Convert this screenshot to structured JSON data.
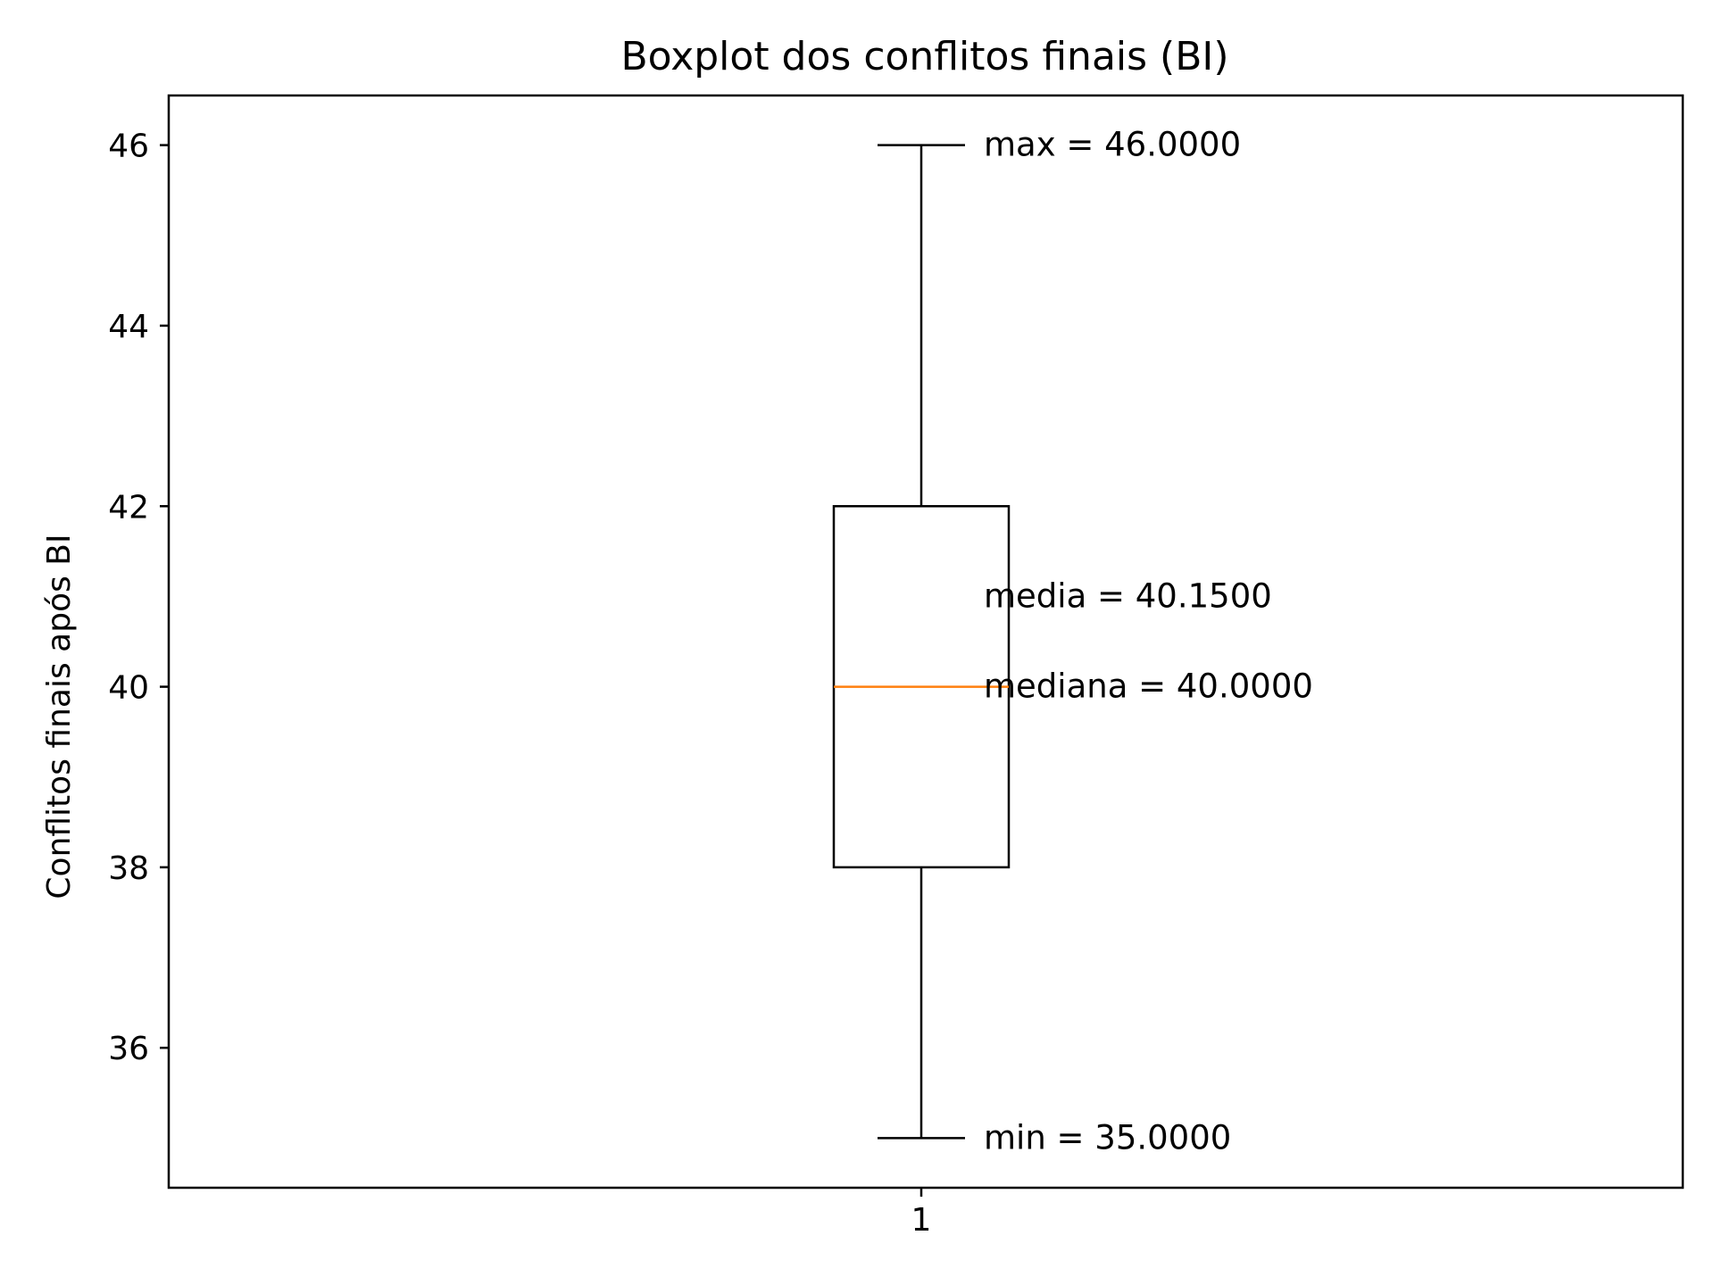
{
  "chart_data": {
    "type": "boxplot",
    "title": "Boxplot dos conflitos finais (BI)",
    "xlabel": "",
    "ylabel": "Conflitos finais após BI",
    "categories": [
      "1"
    ],
    "ylim": [
      34.45,
      46.55
    ],
    "yticks": [
      36,
      38,
      40,
      42,
      44,
      46
    ],
    "ytick_labels": [
      "36",
      "38",
      "40",
      "42",
      "44",
      "46"
    ],
    "grid": false,
    "boxes": [
      {
        "category": "1",
        "whisker_low": 35,
        "q1": 38,
        "median": 40,
        "q3": 42,
        "whisker_high": 46
      }
    ],
    "annotations": [
      {
        "text": "max = 46.0000",
        "y": 46
      },
      {
        "text": "media = 40.1500",
        "y": 41
      },
      {
        "text": "mediana = 40.0000",
        "y": 40
      },
      {
        "text": "min = 35.0000",
        "y": 35
      }
    ],
    "colors": {
      "box": "#000000",
      "median": "#ff7f0e"
    }
  }
}
